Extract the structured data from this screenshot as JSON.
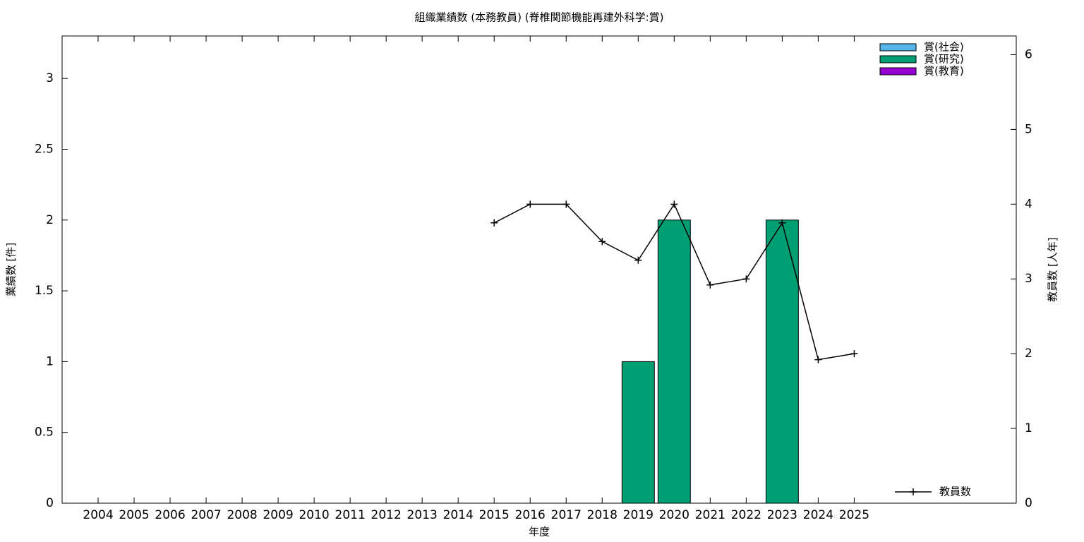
{
  "chart_data": {
    "type": "bar",
    "title": "組織業績数 (本務教員) (脊椎関節機能再建外科学:賞)",
    "x_label": "年度",
    "y_label": "業績数 [件]",
    "y2_label": "教員数 [人年]",
    "x": [
      2004,
      2005,
      2006,
      2007,
      2008,
      2009,
      2010,
      2011,
      2012,
      2013,
      2014,
      2015,
      2016,
      2017,
      2018,
      2019,
      2020,
      2021,
      2022,
      2023,
      2024,
      2025
    ],
    "xlim": [
      2003,
      2029.5
    ],
    "xticks": [
      2004,
      2005,
      2006,
      2007,
      2008,
      2009,
      2010,
      2011,
      2012,
      2013,
      2014,
      2015,
      2016,
      2017,
      2018,
      2019,
      2020,
      2021,
      2022,
      2023,
      2024,
      2025
    ],
    "ylim": [
      0,
      3.3
    ],
    "yticks": [
      0,
      0.5,
      1,
      1.5,
      2,
      2.5,
      3
    ],
    "y2lim": [
      0,
      6.25
    ],
    "y2ticks": [
      0,
      1,
      2,
      3,
      4,
      5,
      6
    ],
    "stacked": true,
    "series": [
      {
        "name": "賞(社会)",
        "color": "#56b4e9",
        "values": [
          0,
          0,
          0,
          0,
          0,
          0,
          0,
          0,
          0,
          0,
          0,
          0,
          0,
          0,
          0,
          0,
          0,
          0,
          0,
          0,
          0,
          0
        ]
      },
      {
        "name": "賞(研究)",
        "color": "#009e73",
        "values": [
          0,
          0,
          0,
          0,
          0,
          0,
          0,
          0,
          0,
          0,
          0,
          0,
          0,
          0,
          0,
          1,
          2,
          0,
          0,
          2,
          0,
          0
        ]
      },
      {
        "name": "賞(教育)",
        "color": "#9400d3",
        "values": [
          0,
          0,
          0,
          0,
          0,
          0,
          0,
          0,
          0,
          0,
          0,
          0,
          0,
          0,
          0,
          0,
          0,
          0,
          0,
          0,
          0,
          0
        ]
      },
      {
        "name": "教員数",
        "type": "line",
        "axis": "y2",
        "color": "#000000",
        "values": [
          null,
          null,
          null,
          null,
          null,
          null,
          null,
          null,
          null,
          null,
          null,
          3.75,
          4,
          4,
          3.5,
          3.25,
          4,
          2.92,
          3,
          3.75,
          1.92,
          2
        ]
      }
    ]
  }
}
